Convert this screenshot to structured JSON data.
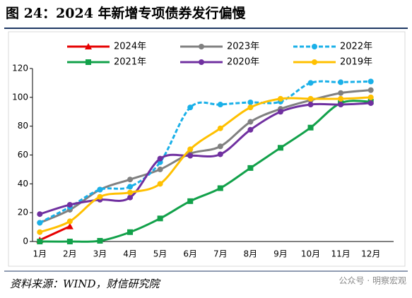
{
  "chart_data": {
    "type": "line",
    "title": "图 24：2024 年新增专项债券发行偏慢",
    "source": "资料来源：WIND，财信研究院",
    "watermark": "公众号 · 明察宏观",
    "categories": [
      "1月",
      "2月",
      "3月",
      "4月",
      "5月",
      "6月",
      "7月",
      "8月",
      "9月",
      "10月",
      "11月",
      "12月"
    ],
    "ylim": [
      0,
      120
    ],
    "yticks": [
      0,
      20,
      40,
      60,
      80,
      100,
      120
    ],
    "grid": false,
    "legend": "top",
    "smooth": true,
    "series": [
      {
        "name": "2024年",
        "color": "#e60000",
        "marker": "triangle",
        "style": "solid",
        "values": [
          1,
          10.5,
          null,
          null,
          null,
          null,
          null,
          null,
          null,
          null,
          null,
          null
        ]
      },
      {
        "name": "2023年",
        "color": "#808080",
        "marker": "circle",
        "style": "solid",
        "values": [
          13,
          22,
          36,
          43,
          50,
          61,
          66,
          83,
          92,
          98,
          103,
          105
        ]
      },
      {
        "name": "2022年",
        "color": "#1ab0e8",
        "marker": "circle",
        "style": "dashed",
        "values": [
          13,
          24,
          36,
          38,
          55,
          93,
          95,
          96.5,
          97,
          110,
          110.5,
          111
        ]
      },
      {
        "name": "2021年",
        "color": "#12a14a",
        "marker": "square",
        "style": "solid",
        "values": [
          0,
          0,
          0.5,
          6.5,
          16,
          28,
          37,
          51,
          65,
          79,
          96,
          97
        ]
      },
      {
        "name": "2020年",
        "color": "#7030a0",
        "marker": "circle",
        "style": "solid",
        "values": [
          19,
          25.5,
          29,
          30.5,
          57.5,
          59.5,
          60.5,
          77.5,
          90,
          95,
          95,
          96
        ]
      },
      {
        "name": "2019年",
        "color": "#ffc000",
        "marker": "circle",
        "style": "solid",
        "values": [
          6.5,
          14,
          31,
          34,
          40,
          64,
          78.5,
          93,
          99,
          99,
          99,
          100
        ]
      }
    ]
  }
}
